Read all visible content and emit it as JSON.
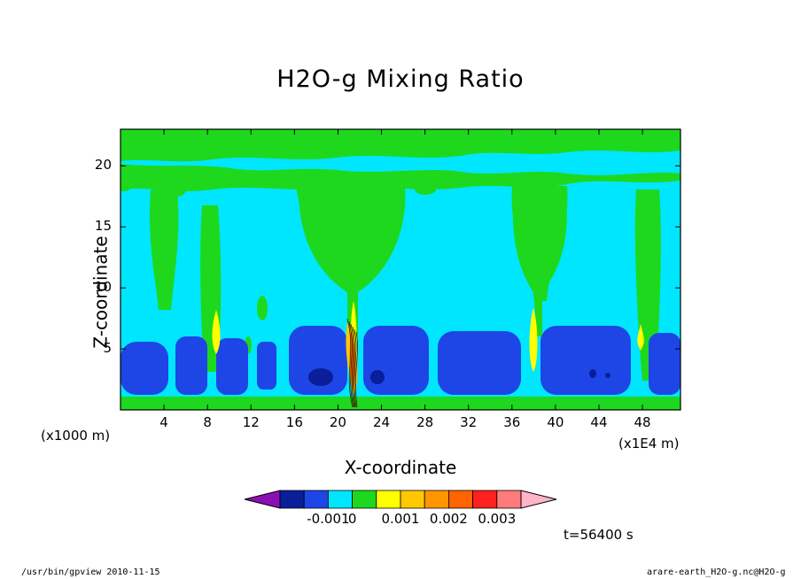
{
  "chart_data": {
    "type": "heatmap",
    "title": "H2O-g Mixing Ratio",
    "xlabel": "X-coordinate",
    "ylabel": "Z-coordinate",
    "x_unit_left": "(x1000 m)",
    "x_unit_right": "(x1E4 m)",
    "xlim": [
      0,
      51.5
    ],
    "ylim": [
      0,
      23
    ],
    "x_ticks": [
      4,
      8,
      12,
      16,
      20,
      24,
      28,
      32,
      36,
      40,
      44,
      48
    ],
    "y_ticks": [
      5,
      10,
      15,
      20
    ],
    "colorbar": {
      "levels": [
        -0.001,
        0,
        0.001,
        0.002,
        0.003
      ],
      "labels": [
        "-0.001",
        "0",
        "0.001",
        "0.002",
        "0.003"
      ],
      "colors": [
        "#8a10b4",
        "#0a1e9a",
        "#1e46e6",
        "#00e6ff",
        "#1ed81e",
        "#ffff00",
        "#ffc800",
        "#ff9600",
        "#ff6400",
        "#ff2020",
        "#ff7a7a",
        "#ffb4c8"
      ]
    },
    "field_colors": {
      "negative_strong": "#0a1e9a",
      "negative": "#1e46e6",
      "near_zero": "#00e6ff",
      "positive": "#1ed81e",
      "high": "#ffff00",
      "higher": "#ffc800",
      "highest": "#ff6400"
    },
    "time_label": "t=56400 s"
  },
  "footer": {
    "left": "/usr/bin/gpview  2010-11-15",
    "right": "arare-earth_H2O-g.nc@H2O-g"
  }
}
